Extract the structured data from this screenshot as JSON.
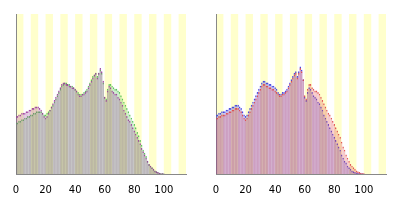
{
  "chart_data": [
    {
      "type": "bar",
      "x": [
        0,
        1,
        2,
        3,
        4,
        5,
        6,
        7,
        8,
        9,
        10,
        11,
        12,
        13,
        14,
        15,
        16,
        17,
        18,
        19,
        20,
        21,
        22,
        23,
        24,
        25,
        26,
        27,
        28,
        29,
        30,
        31,
        32,
        33,
        34,
        35,
        36,
        37,
        38,
        39,
        40,
        41,
        42,
        43,
        44,
        45,
        46,
        47,
        48,
        49,
        50,
        51,
        52,
        53,
        54,
        55,
        56,
        57,
        58,
        59,
        60,
        61,
        62,
        63,
        64,
        65,
        66,
        67,
        68,
        69,
        70,
        71,
        72,
        73,
        74,
        75,
        76,
        77,
        78,
        79,
        80,
        81,
        82,
        83,
        84,
        85,
        86,
        87,
        88,
        89,
        90,
        91,
        92,
        93,
        94,
        95,
        96,
        97,
        98,
        99,
        100
      ],
      "series": [
        {
          "color": "#9c3d9c",
          "values": [
            36,
            36,
            37,
            37,
            38,
            38,
            38,
            39,
            39,
            40,
            40,
            41,
            41,
            42,
            42,
            42,
            41,
            40,
            38,
            36,
            35,
            36,
            38,
            40,
            42,
            44,
            46,
            48,
            50,
            52,
            54,
            56,
            57,
            57,
            56,
            56,
            55,
            55,
            54,
            54,
            53,
            52,
            50,
            49,
            49,
            50,
            50,
            51,
            52,
            54,
            56,
            58,
            60,
            62,
            63,
            60,
            63,
            66,
            64,
            58,
            48,
            46,
            52,
            55,
            54,
            52,
            51,
            50,
            50,
            48,
            47,
            45,
            43,
            40,
            38,
            36,
            34,
            33,
            31,
            29,
            27,
            25,
            23,
            21,
            19,
            16,
            14,
            12,
            10,
            8,
            6,
            5,
            4,
            3,
            2,
            1.5,
            1,
            0.5,
            0.3,
            0.2,
            0.1
          ]
        },
        {
          "color": "#4fbf4f",
          "values": [
            32,
            32,
            33,
            33,
            34,
            34,
            35,
            35,
            36,
            36,
            37,
            37,
            38,
            38,
            39,
            39,
            39,
            39,
            38,
            37,
            37,
            38,
            39,
            40,
            42,
            43,
            45,
            47,
            49,
            51,
            53,
            55,
            56,
            57,
            57,
            56,
            56,
            55,
            55,
            54,
            53,
            52,
            51,
            50,
            50,
            50,
            51,
            52,
            53,
            55,
            57,
            59,
            61,
            62,
            63,
            61,
            63,
            65,
            63,
            57,
            48,
            47,
            53,
            56,
            56,
            55,
            54,
            53,
            53,
            52,
            51,
            49,
            47,
            45,
            43,
            41,
            39,
            37,
            35,
            33,
            31,
            29,
            26,
            24,
            21,
            18,
            15,
            13,
            11,
            8,
            6,
            5,
            4,
            3,
            2,
            1.5,
            1,
            0.5,
            0.3,
            0.2,
            0.1
          ]
        }
      ],
      "xlim": [
        0,
        115
      ],
      "xticks": [
        0,
        20,
        40,
        60,
        80,
        100
      ],
      "ylim": [
        0,
        100
      ],
      "tick_labels": "x",
      "grid": false
    },
    {
      "type": "bar",
      "x": [
        0,
        1,
        2,
        3,
        4,
        5,
        6,
        7,
        8,
        9,
        10,
        11,
        12,
        13,
        14,
        15,
        16,
        17,
        18,
        19,
        20,
        21,
        22,
        23,
        24,
        25,
        26,
        27,
        28,
        29,
        30,
        31,
        32,
        33,
        34,
        35,
        36,
        37,
        38,
        39,
        40,
        41,
        42,
        43,
        44,
        45,
        46,
        47,
        48,
        49,
        50,
        51,
        52,
        53,
        54,
        55,
        56,
        57,
        58,
        59,
        60,
        61,
        62,
        63,
        64,
        65,
        66,
        67,
        68,
        69,
        70,
        71,
        72,
        73,
        74,
        75,
        76,
        77,
        78,
        79,
        80,
        81,
        82,
        83,
        84,
        85,
        86,
        87,
        88,
        89,
        90,
        91,
        92,
        93,
        94,
        95,
        96,
        97,
        98,
        99,
        100
      ],
      "series": [
        {
          "color": "#e04848",
          "values": [
            35,
            35,
            36,
            36,
            37,
            37,
            37,
            38,
            38,
            39,
            39,
            40,
            40,
            41,
            41,
            41,
            40,
            39,
            37,
            35,
            34,
            35,
            37,
            39,
            41,
            43,
            45,
            47,
            49,
            51,
            53,
            55,
            56,
            56,
            55,
            55,
            54,
            54,
            53,
            53,
            52,
            51,
            50,
            49,
            49,
            50,
            50,
            51,
            52,
            54,
            56,
            58,
            60,
            62,
            63,
            60,
            63,
            66,
            64,
            59,
            49,
            47,
            53,
            56,
            56,
            54,
            53,
            52,
            52,
            51,
            50,
            48,
            46,
            44,
            42,
            40,
            38,
            37,
            35,
            33,
            31,
            29,
            27,
            25,
            23,
            20,
            17,
            15,
            12,
            10,
            8,
            6,
            5,
            4,
            3,
            2,
            1.5,
            1,
            0.5,
            0.3,
            0.2
          ]
        },
        {
          "color": "#3a3ae0",
          "values": [
            37,
            37,
            38,
            38,
            39,
            39,
            39,
            40,
            40,
            41,
            41,
            42,
            42,
            43,
            43,
            43,
            42,
            41,
            39,
            37,
            36,
            37,
            39,
            41,
            43,
            45,
            47,
            49,
            51,
            53,
            55,
            57,
            58,
            58,
            57,
            57,
            56,
            56,
            55,
            55,
            54,
            53,
            51,
            50,
            50,
            51,
            51,
            52,
            53,
            55,
            57,
            59,
            61,
            63,
            64,
            61,
            64,
            67,
            65,
            59,
            48,
            46,
            51,
            54,
            53,
            51,
            49,
            48,
            47,
            45,
            44,
            42,
            40,
            37,
            35,
            33,
            31,
            29,
            27,
            25,
            23,
            21,
            19,
            17,
            15,
            12,
            10,
            8,
            7,
            5,
            4,
            3,
            2,
            1.5,
            1,
            0.7,
            0.5,
            0.3,
            0.2,
            0.1,
            0
          ]
        }
      ],
      "xlim": [
        0,
        115
      ],
      "xticks": [
        0,
        20,
        40,
        60,
        80,
        100
      ],
      "ylim": [
        0,
        100
      ],
      "tick_labels": "x",
      "grid": false
    }
  ]
}
